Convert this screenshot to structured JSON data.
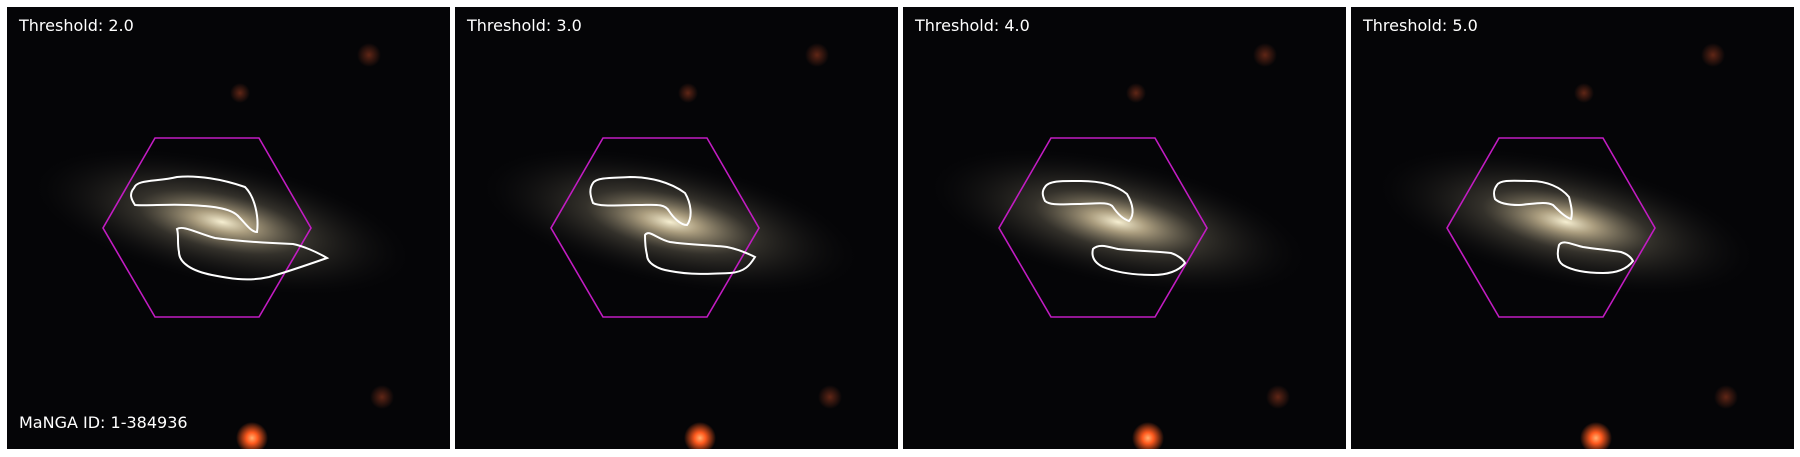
{
  "panels": [
    {
      "threshold_label": "Threshold: 2.0",
      "threshold": 2.0,
      "id_label": "MaNGA ID: 1-384936"
    },
    {
      "threshold_label": "Threshold: 3.0",
      "threshold": 3.0,
      "id_label": ""
    },
    {
      "threshold_label": "Threshold: 4.0",
      "threshold": 4.0,
      "id_label": ""
    },
    {
      "threshold_label": "Threshold: 5.0",
      "threshold": 5.0,
      "id_label": ""
    }
  ],
  "colors": {
    "background": "#050507",
    "hexagon": "#c21cc2",
    "contour": "#ffffff",
    "galaxy_core": "#f4edd0",
    "star": "#ff5a1e",
    "label_text": "#ffffff"
  }
}
